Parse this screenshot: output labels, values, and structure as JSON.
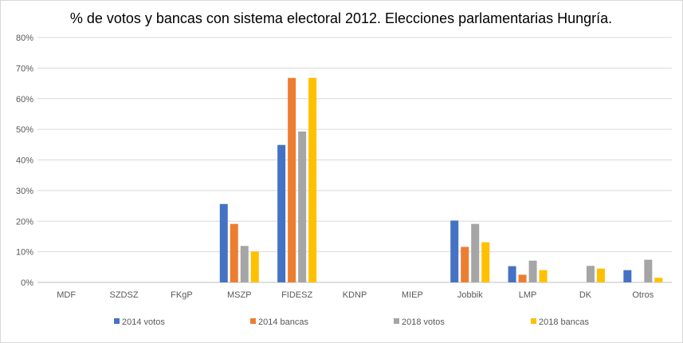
{
  "chart_data": {
    "type": "bar",
    "title": "% de votos y bancas con sistema electoral 2012. Elecciones parlamentarias Hungría.",
    "xlabel": "",
    "ylabel": "",
    "categories": [
      "MDF",
      "SZDSZ",
      "FKgP",
      "MSZP",
      "FIDESZ",
      "KDNP",
      "MIEP",
      "Jobbik",
      "LMP",
      "DK",
      "Otros"
    ],
    "ylim": [
      0,
      80
    ],
    "yticks": [
      "0%",
      "10%",
      "20%",
      "30%",
      "40%",
      "50%",
      "60%",
      "70%",
      "80%"
    ],
    "grid": true,
    "legend": "bottom",
    "series": [
      {
        "name": "2014 votos",
        "color": "#4472C4",
        "values": [
          null,
          null,
          null,
          25.6,
          44.9,
          null,
          null,
          20.2,
          5.3,
          null,
          4.0
        ]
      },
      {
        "name": "2014 bancas",
        "color": "#ED7D31",
        "values": [
          null,
          null,
          null,
          19.1,
          66.8,
          null,
          null,
          11.6,
          2.5,
          null,
          null
        ]
      },
      {
        "name": "2018 votos",
        "color": "#A5A5A5",
        "values": [
          null,
          null,
          null,
          11.9,
          49.3,
          null,
          null,
          19.1,
          7.1,
          5.4,
          7.4
        ]
      },
      {
        "name": "2018 bancas",
        "color": "#FFC000",
        "values": [
          null,
          null,
          null,
          10.1,
          66.8,
          null,
          null,
          13.1,
          4.0,
          4.5,
          1.5
        ]
      }
    ]
  }
}
